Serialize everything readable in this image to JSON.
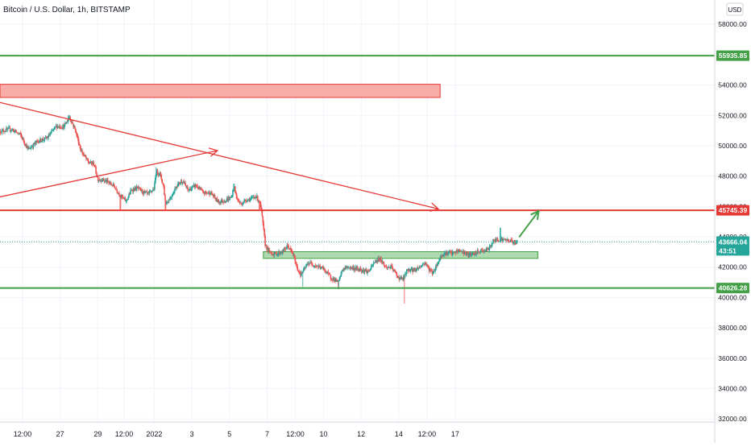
{
  "header": {
    "symbol_title": "Bitcoin / U.S. Dollar, 1h, BITSTAMP",
    "currency_button": "USD"
  },
  "colors": {
    "up": "#26a69a",
    "down": "#ef5350",
    "green_line": "#43a047",
    "red_line": "#e53935",
    "grid": "#f0f3fa",
    "zone_red": "#f8a4a0",
    "zone_green": "#a5d6a7",
    "axis_text": "#131722"
  },
  "chart_data": {
    "type": "candlestick",
    "title": "Bitcoin / U.S. Dollar, 1h, BITSTAMP",
    "ylim": [
      31800,
      59600
    ],
    "x_range": [
      -1.6,
      17.4
    ],
    "x_unit": "day offset (Dec 27 2021 = 0 ... Jan 17 2022 = 21), ticks printed below",
    "y_ticks": [
      58000,
      56000,
      54000,
      52000,
      50000,
      48000,
      46000,
      44000,
      42000,
      40000,
      38000,
      36000,
      34000,
      32000
    ],
    "y_tick_labels": [
      "58000.00",
      "56000.00",
      "54000.00",
      "52000.00",
      "50000.00",
      "48000.00",
      "46000.00",
      "44000.00",
      "42000.00",
      "40000.00",
      "38000.00",
      "36000.00",
      "34000.00",
      "32000.00"
    ],
    "x_ticks": [
      {
        "pos": -1.0,
        "label": "12:00"
      },
      {
        "pos": 0.0,
        "label": "27"
      },
      {
        "pos": 1.0,
        "label": "29"
      },
      {
        "pos": 1.7,
        "label": "12:00"
      },
      {
        "pos": 2.5,
        "label": "2022"
      },
      {
        "pos": 3.5,
        "label": "3"
      },
      {
        "pos": 4.5,
        "label": "5"
      },
      {
        "pos": 5.5,
        "label": "7"
      },
      {
        "pos": 6.25,
        "label": "12:00"
      },
      {
        "pos": 7.0,
        "label": "10"
      },
      {
        "pos": 8.0,
        "label": "12"
      },
      {
        "pos": 9.0,
        "label": "14"
      },
      {
        "pos": 9.75,
        "label": "12:00"
      },
      {
        "pos": 10.5,
        "label": "17"
      }
    ],
    "price_path": [
      [
        -1.6,
        50950
      ],
      [
        -1.3,
        51100
      ],
      [
        -1.05,
        50700
      ],
      [
        -0.85,
        49750
      ],
      [
        -0.6,
        50300
      ],
      [
        -0.35,
        50500
      ],
      [
        -0.1,
        51300
      ],
      [
        0.1,
        51250
      ],
      [
        0.25,
        51900
      ],
      [
        0.4,
        51050
      ],
      [
        0.55,
        49700
      ],
      [
        0.75,
        48900
      ],
      [
        0.9,
        48800
      ],
      [
        1.0,
        47800
      ],
      [
        1.15,
        47750
      ],
      [
        1.3,
        47550
      ],
      [
        1.45,
        47300
      ],
      [
        1.6,
        46700
      ],
      [
        1.75,
        46350
      ],
      [
        1.9,
        47100
      ],
      [
        2.05,
        47200
      ],
      [
        2.2,
        46950
      ],
      [
        2.35,
        46800
      ],
      [
        2.5,
        47200
      ],
      [
        2.55,
        48300
      ],
      [
        2.65,
        48150
      ],
      [
        2.75,
        47300
      ],
      [
        2.8,
        46150
      ],
      [
        2.95,
        46650
      ],
      [
        3.1,
        47400
      ],
      [
        3.25,
        47700
      ],
      [
        3.4,
        47050
      ],
      [
        3.6,
        47400
      ],
      [
        3.8,
        46900
      ],
      [
        4.0,
        46900
      ],
      [
        4.2,
        46300
      ],
      [
        4.4,
        46400
      ],
      [
        4.55,
        46600
      ],
      [
        4.62,
        47300
      ],
      [
        4.7,
        46500
      ],
      [
        4.8,
        46150
      ],
      [
        4.95,
        46450
      ],
      [
        5.1,
        46500
      ],
      [
        5.2,
        46700
      ],
      [
        5.3,
        46300
      ],
      [
        5.35,
        45700
      ],
      [
        5.45,
        43500
      ],
      [
        5.55,
        43000
      ],
      [
        5.7,
        42850
      ],
      [
        5.9,
        43000
      ],
      [
        6.05,
        43400
      ],
      [
        6.2,
        42800
      ],
      [
        6.3,
        41900
      ],
      [
        6.4,
        41500
      ],
      [
        6.5,
        41900
      ],
      [
        6.6,
        42300
      ],
      [
        6.8,
        42100
      ],
      [
        7.0,
        41900
      ],
      [
        7.2,
        41300
      ],
      [
        7.4,
        41000
      ],
      [
        7.5,
        41850
      ],
      [
        7.65,
        42000
      ],
      [
        7.85,
        41900
      ],
      [
        8.0,
        41850
      ],
      [
        8.2,
        41700
      ],
      [
        8.35,
        42300
      ],
      [
        8.5,
        42600
      ],
      [
        8.65,
        42000
      ],
      [
        8.8,
        42000
      ],
      [
        9.0,
        41300
      ],
      [
        9.1,
        41200
      ],
      [
        9.25,
        41850
      ],
      [
        9.4,
        41800
      ],
      [
        9.55,
        42000
      ],
      [
        9.7,
        42300
      ],
      [
        9.8,
        41900
      ],
      [
        9.9,
        41600
      ],
      [
        10.0,
        42100
      ],
      [
        10.15,
        42850
      ],
      [
        10.3,
        42950
      ],
      [
        10.45,
        42900
      ],
      [
        10.6,
        43100
      ],
      [
        10.75,
        42950
      ],
      [
        10.85,
        42800
      ],
      [
        11.0,
        42850
      ],
      [
        11.15,
        43050
      ],
      [
        11.3,
        43100
      ],
      [
        11.4,
        43200
      ],
      [
        11.5,
        43700
      ],
      [
        11.65,
        43850
      ],
      [
        11.8,
        43800
      ],
      [
        11.95,
        43750
      ],
      [
        12.05,
        43650
      ],
      [
        12.15,
        43660
      ]
    ],
    "wick_spikes": [
      {
        "x": 1.6,
        "low": 45800
      },
      {
        "x": 2.8,
        "low": 45750
      },
      {
        "x": 5.3,
        "low": 45800
      },
      {
        "x": 6.45,
        "low": 40700
      },
      {
        "x": 7.4,
        "low": 40550
      },
      {
        "x": 9.15,
        "low": 39600
      },
      {
        "x": 0.22,
        "high": 52000
      },
      {
        "x": 2.55,
        "high": 48600
      },
      {
        "x": 4.62,
        "high": 47500
      },
      {
        "x": 11.7,
        "high": 44600
      }
    ],
    "horizontal_levels": [
      {
        "price": 55935.85,
        "label": "55935.85",
        "color": "green"
      },
      {
        "price": 45745.39,
        "label": "45745.39",
        "color": "red"
      },
      {
        "price": 40626.28,
        "label": "40626.28",
        "color": "green"
      }
    ],
    "current_price": {
      "price": 43666.04,
      "label": "43666.04",
      "countdown": "43:51"
    },
    "zones": [
      {
        "color": "red",
        "x0": -1.6,
        "x1": 10.1,
        "y0": 53180,
        "y1": 54050
      },
      {
        "color": "green",
        "x0": 5.4,
        "x1": 12.7,
        "y0": 42580,
        "y1": 43020
      }
    ],
    "trend_lines": [
      {
        "color": "red",
        "x0": -1.6,
        "x1": 10.05,
        "y0": 52850,
        "y1": 45840,
        "arrow": true
      },
      {
        "color": "red",
        "x0": -1.6,
        "x1": 4.18,
        "y0": 46630,
        "y1": 49680,
        "arrow": true
      },
      {
        "color": "green",
        "x0": 12.2,
        "x1": 12.72,
        "y0": 43980,
        "y1": 45700,
        "arrow": true
      }
    ]
  }
}
